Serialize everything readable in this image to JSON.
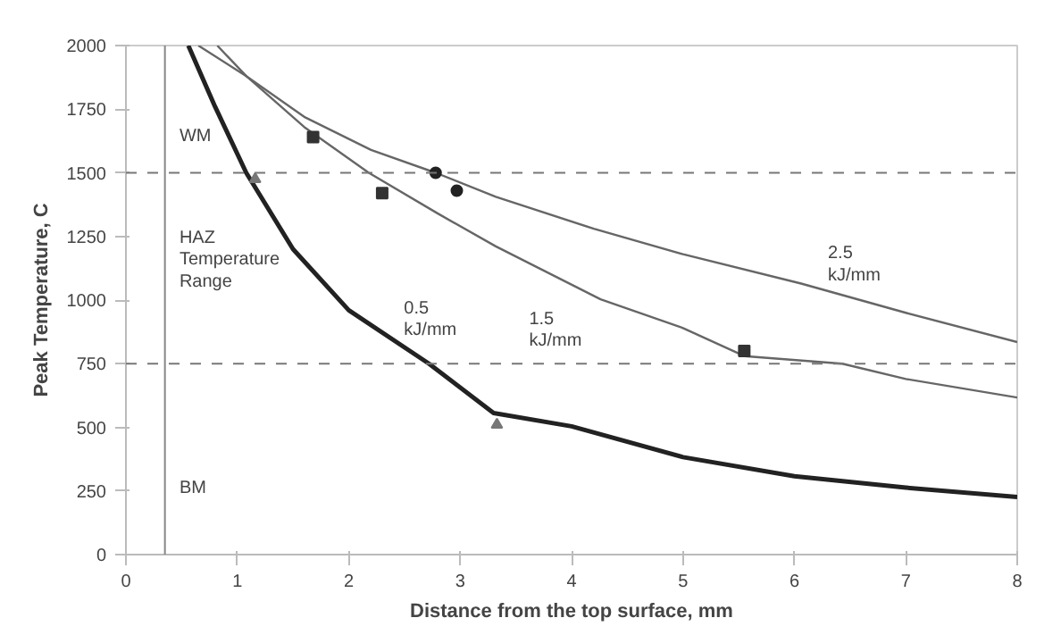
{
  "chart_data": {
    "type": "line",
    "xlabel": "Distance from the top surface, mm",
    "ylabel": "Peak Temperature, C",
    "xlim": [
      0,
      8
    ],
    "ylim": [
      0,
      2000
    ],
    "xticks": [
      0,
      1,
      2,
      3,
      4,
      5,
      6,
      7,
      8
    ],
    "yticks": [
      0,
      250,
      500,
      750,
      1000,
      1250,
      1500,
      1750,
      2000
    ],
    "grid": false,
    "series": [
      {
        "name": "0.5\nkJ/mm",
        "color": "#222222",
        "x": [
          0.56,
          0.8,
          1.08,
          1.5,
          2.0,
          2.72,
          3.3,
          4.0,
          5.0,
          6.0,
          7.0,
          8.0
        ],
        "values": [
          2000,
          1760,
          1500,
          1200,
          960,
          750,
          556,
          504,
          383,
          308,
          263,
          226
        ]
      },
      {
        "name": "1.5\nkJ/mm",
        "color": "#666666",
        "x": [
          0.65,
          1.08,
          1.6,
          2.18,
          2.8,
          3.32,
          4.26,
          5.0,
          5.55,
          6.43,
          7.0,
          8.0
        ],
        "values": [
          2000,
          1880,
          1680,
          1500,
          1340,
          1211,
          1003,
          890,
          780,
          750,
          690,
          617
        ]
      },
      {
        "name": "2.5\nkJ/mm",
        "color": "#666666",
        "x": [
          0.82,
          1.08,
          1.6,
          2.2,
          2.78,
          3.32,
          4.2,
          5.0,
          6.06,
          7.0,
          8.0
        ],
        "values": [
          2000,
          1880,
          1720,
          1590,
          1500,
          1406,
          1280,
          1180,
          1065,
          950,
          835
        ]
      },
      {
        "type": "scatter",
        "marker": "square",
        "color": "#333333",
        "x": [
          1.68,
          2.3,
          5.55
        ],
        "values": [
          1640,
          1420,
          800
        ]
      },
      {
        "type": "scatter",
        "marker": "circle",
        "color": "#222222",
        "x": [
          2.78,
          2.97
        ],
        "values": [
          1500,
          1430
        ]
      },
      {
        "type": "scatter",
        "marker": "triangle",
        "color": "#777777",
        "x": [
          1.16,
          3.33
        ],
        "values": [
          1475,
          510
        ]
      }
    ],
    "ref_lines": [
      {
        "axis": "y",
        "value": 1500,
        "line_style": "dashed",
        "color": "#777777"
      },
      {
        "axis": "y",
        "value": 750,
        "line_style": "dashed",
        "color": "#777777"
      },
      {
        "axis": "x",
        "value": 0.35,
        "line_style": "solid",
        "color": "#888888"
      }
    ],
    "annotations": [
      "WM",
      "HAZ\nTemperature\nRange",
      "BM"
    ]
  }
}
